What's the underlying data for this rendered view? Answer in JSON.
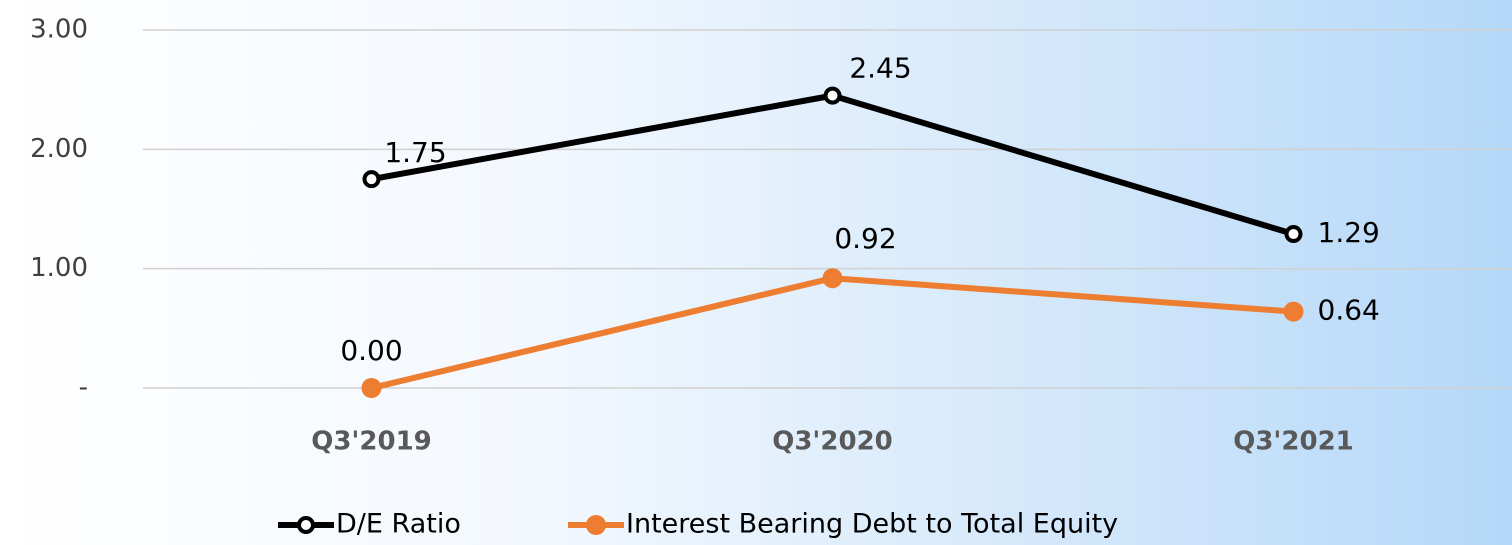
{
  "chart_data": {
    "type": "line",
    "categories": [
      "Q3'2019",
      "Q3'2020",
      "Q3'2021"
    ],
    "series": [
      {
        "name": "D/E Ratio",
        "color": "#000000",
        "values": [
          1.75,
          2.45,
          1.29
        ],
        "value_labels": [
          "1.75",
          "2.45",
          "1.29"
        ]
      },
      {
        "name": "Interest Bearing Debt to Total Equity",
        "color": "#ed7d31",
        "values": [
          0,
          0.92,
          0.64
        ],
        "value_labels": [
          "0.00",
          "0.92",
          "0.64"
        ]
      }
    ],
    "ylim": [
      0,
      3
    ],
    "yticks": [
      {
        "value": 0,
        "label": "-"
      },
      {
        "value": 1,
        "label": "1.00"
      },
      {
        "value": 2,
        "label": "2.00"
      },
      {
        "value": 3,
        "label": "3.00"
      }
    ],
    "grid": true,
    "legend": "bottom"
  }
}
